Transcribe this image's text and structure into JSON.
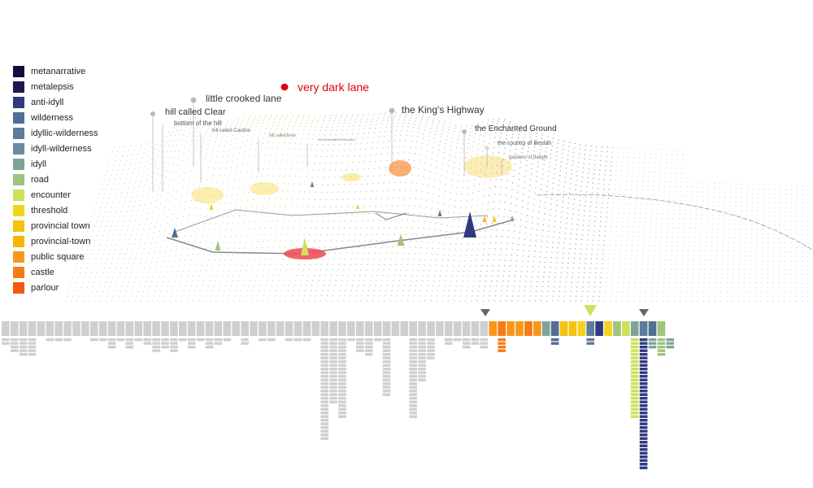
{
  "legend": {
    "items": [
      {
        "label": "metanarrative",
        "color": "#120e3f"
      },
      {
        "label": "metalepsis",
        "color": "#1d1a52"
      },
      {
        "label": "anti-idyll",
        "color": "#2f3a82"
      },
      {
        "label": "wilderness",
        "color": "#516f94"
      },
      {
        "label": "idyllic-wilderness",
        "color": "#5b7c9a"
      },
      {
        "label": "idyll-wilderness",
        "color": "#6a8aa2"
      },
      {
        "label": "idyll",
        "color": "#7fa496"
      },
      {
        "label": "road",
        "color": "#9ec480"
      },
      {
        "label": "encounter",
        "color": "#cfe05a"
      },
      {
        "label": "threshold",
        "color": "#f3d21b"
      },
      {
        "label": "provincial town",
        "color": "#f6c10f"
      },
      {
        "label": "provincial-town",
        "color": "#f8b50a"
      },
      {
        "label": "public square",
        "color": "#f7981a"
      },
      {
        "label": "castle",
        "color": "#f57b14"
      },
      {
        "label": "parlour",
        "color": "#f25a12"
      }
    ]
  },
  "places": [
    {
      "label": "very dark lane",
      "color": "#e0000a",
      "dot": "#e0000a"
    },
    {
      "label": "little crooked lane",
      "color": "#333333",
      "dot": "#a9c0b6"
    },
    {
      "label": "hill called Clear",
      "color": "#333333",
      "dot": "#a9c0b6"
    },
    {
      "label": "bottom of the hill",
      "color": "#555555",
      "dot": ""
    },
    {
      "label": "hill called Caution",
      "color": "#666666",
      "dot": ""
    },
    {
      "label": "hill called Error",
      "color": "#777777",
      "dot": ""
    },
    {
      "label": "the Delectable Mountains",
      "color": "#888888",
      "dot": ""
    },
    {
      "label": "the King's Highway",
      "color": "#333333",
      "dot": "#a9c0b6"
    },
    {
      "label": "the Enchanted Ground",
      "color": "#333333",
      "dot": "#a9c0b6"
    },
    {
      "label": "the country of Beulah",
      "color": "#555555",
      "dot": "#cfd8d2"
    },
    {
      "label": "gardens of delight",
      "color": "#777777",
      "dot": ""
    }
  ],
  "bars": {
    "empty_color": "#cfcfcf",
    "header_count": 75,
    "markers": [
      "#666666",
      "#cfe05a",
      "#666666"
    ]
  }
}
